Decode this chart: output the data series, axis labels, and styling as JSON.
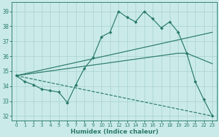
{
  "xlabel": "Humidex (Indice chaleur)",
  "background_color": "#caeaea",
  "grid_color": "#aad4d0",
  "line_color": "#2a7a6a",
  "xlim": [
    -0.5,
    23.5
  ],
  "ylim": [
    31.7,
    39.6
  ],
  "yticks": [
    32,
    33,
    34,
    35,
    36,
    37,
    38,
    39
  ],
  "xticks": [
    0,
    1,
    2,
    3,
    4,
    5,
    6,
    7,
    8,
    9,
    10,
    11,
    12,
    13,
    14,
    15,
    16,
    17,
    18,
    19,
    20,
    21,
    22,
    23
  ],
  "series": [
    {
      "x": [
        0,
        1,
        2,
        3,
        4,
        5,
        6,
        7,
        8,
        9,
        10,
        11,
        12,
        13,
        14,
        15,
        16,
        17,
        18,
        19,
        20,
        21,
        22,
        23
      ],
      "y": [
        34.7,
        34.3,
        34.1,
        33.8,
        33.7,
        33.6,
        32.9,
        34.1,
        35.2,
        35.9,
        37.3,
        37.6,
        39.0,
        38.6,
        38.3,
        39.0,
        38.5,
        37.9,
        38.3,
        37.6,
        36.2,
        34.3,
        33.1,
        32.0
      ],
      "linestyle": "-",
      "marker": "D",
      "markersize": 2.0
    },
    {
      "x": [
        0,
        23
      ],
      "y": [
        34.7,
        37.6
      ],
      "linestyle": "-",
      "marker": null,
      "markersize": 0
    },
    {
      "x": [
        0,
        19,
        20,
        23
      ],
      "y": [
        34.7,
        36.2,
        36.2,
        35.5
      ],
      "linestyle": "-",
      "marker": null,
      "markersize": 0
    },
    {
      "x": [
        0,
        23
      ],
      "y": [
        34.7,
        32.0
      ],
      "linestyle": "--",
      "marker": null,
      "markersize": 0
    }
  ]
}
